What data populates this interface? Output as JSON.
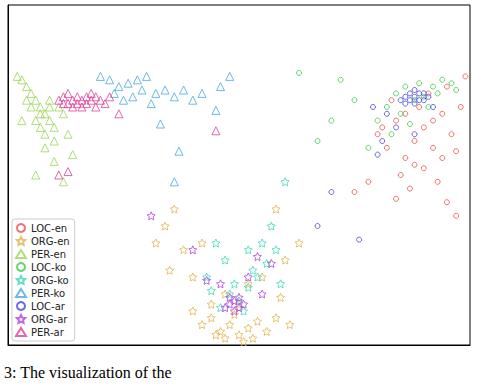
{
  "chart_data": {
    "type": "scatter",
    "caption": "3: The visualization of the",
    "xlim": [
      0,
      100
    ],
    "ylim": [
      0,
      100
    ],
    "tick_labels": false,
    "grid": false,
    "legend": "lower left",
    "series": [
      {
        "name": "LOC-en",
        "color": "#e8534a",
        "marker": "circle",
        "x": [
          80,
          82,
          84,
          86,
          88,
          90,
          92,
          94,
          96,
          98,
          99,
          85,
          87,
          90,
          93,
          95,
          97,
          83,
          89,
          91,
          95,
          78,
          75,
          92,
          86,
          81,
          88,
          94,
          97,
          84
        ],
        "values": [
          62,
          58,
          66,
          55,
          60,
          64,
          58,
          68,
          62,
          70,
          79,
          50,
          46,
          52,
          48,
          42,
          38,
          72,
          70,
          74,
          76,
          48,
          45,
          66,
          68,
          64,
          53,
          55,
          57,
          43
        ]
      },
      {
        "name": "ORG-en",
        "color": "#e0b44c",
        "marker": "star",
        "x": [
          48,
          46,
          50,
          52,
          44,
          54,
          47,
          49,
          51,
          45,
          53,
          56,
          42,
          58,
          50,
          47,
          40,
          38,
          32,
          36,
          34,
          42,
          55,
          60,
          63,
          59,
          44,
          52,
          58,
          40,
          61,
          35
        ],
        "values": [
          6,
          4,
          3,
          5,
          8,
          7,
          2,
          9,
          1,
          3,
          2,
          4,
          6,
          8,
          12,
          15,
          20,
          28,
          30,
          40,
          35,
          30,
          20,
          25,
          30,
          14,
          12,
          18,
          40,
          10,
          6,
          22
        ]
      },
      {
        "name": "PER-en",
        "color": "#9ed45a",
        "marker": "triangle",
        "x": [
          3,
          4,
          5,
          6,
          7,
          8,
          9,
          7,
          8,
          10,
          6,
          5,
          9,
          11,
          12,
          4,
          3,
          8,
          10,
          14,
          12,
          6,
          2,
          10,
          13,
          7,
          9
        ],
        "values": [
          78,
          76,
          74,
          72,
          70,
          68,
          66,
          64,
          62,
          60,
          66,
          70,
          72,
          70,
          68,
          72,
          66,
          58,
          54,
          56,
          48,
          50,
          79,
          64,
          62,
          68,
          70
        ]
      },
      {
        "name": "LOC-ko",
        "color": "#3fcc4a",
        "marker": "circle",
        "x": [
          63,
          67,
          70,
          75,
          82,
          84,
          86,
          88,
          90,
          92,
          94,
          96,
          93,
          89,
          85,
          83,
          87,
          91,
          97,
          80,
          78,
          72
        ],
        "values": [
          80,
          60,
          66,
          72,
          70,
          74,
          76,
          72,
          73,
          76,
          78,
          77,
          74,
          77,
          68,
          62,
          65,
          70,
          75,
          66,
          58,
          78
        ]
      },
      {
        "name": "ORG-ko",
        "color": "#3fd6b8",
        "marker": "star",
        "x": [
          50,
          48,
          52,
          54,
          46,
          56,
          58,
          44,
          53,
          49,
          51,
          55,
          47,
          43,
          57,
          60,
          45,
          59,
          52
        ],
        "values": [
          13,
          15,
          17,
          20,
          11,
          24,
          28,
          16,
          22,
          18,
          10,
          30,
          25,
          20,
          35,
          48,
          30,
          18,
          28
        ]
      },
      {
        "name": "PER-ko",
        "color": "#4aa8e0",
        "marker": "triangle",
        "x": [
          20,
          22,
          24,
          26,
          28,
          30,
          23,
          25,
          32,
          34,
          36,
          38,
          40,
          42,
          46,
          48,
          29,
          31,
          37,
          36,
          33,
          45,
          27
        ],
        "values": [
          79,
          78,
          76,
          77,
          78,
          79,
          74,
          72,
          74,
          75,
          73,
          75,
          72,
          74,
          76,
          79,
          75,
          71,
          57,
          48,
          65,
          69,
          73
        ]
      },
      {
        "name": "LOC-ar",
        "color": "#4444dd",
        "marker": "circle",
        "x": [
          86,
          87,
          88,
          89,
          90,
          88,
          87,
          89,
          91,
          86,
          90,
          85,
          82,
          84,
          81,
          80,
          88,
          67,
          76,
          70,
          92,
          79,
          88
        ],
        "values": [
          73,
          74,
          73,
          74,
          72,
          71,
          72,
          72,
          73,
          71,
          74,
          72,
          68,
          64,
          60,
          56,
          62,
          35,
          31,
          45,
          70,
          70,
          75
        ]
      },
      {
        "name": "ORG-ar",
        "color": "#b040e0",
        "marker": "star",
        "x": [
          49,
          48,
          50,
          47,
          51,
          49,
          48,
          50,
          31,
          43,
          57,
          46,
          52,
          54,
          40,
          55
        ],
        "values": [
          13,
          12,
          14,
          11,
          12,
          10,
          14,
          11,
          38,
          19,
          24,
          18,
          20,
          26,
          28,
          15
        ]
      },
      {
        "name": "PER-ar",
        "color": "#e0409a",
        "marker": "triangle",
        "x": [
          11,
          12,
          13,
          14,
          15,
          16,
          17,
          18,
          19,
          20,
          14,
          16,
          18,
          12,
          15,
          17,
          21,
          13,
          19,
          22,
          11,
          13,
          45,
          24
        ],
        "values": [
          72,
          73,
          71,
          72,
          73,
          72,
          71,
          72,
          73,
          72,
          70,
          70,
          74,
          71,
          71,
          73,
          71,
          74,
          70,
          73,
          50,
          51,
          63,
          68
        ]
      }
    ]
  }
}
